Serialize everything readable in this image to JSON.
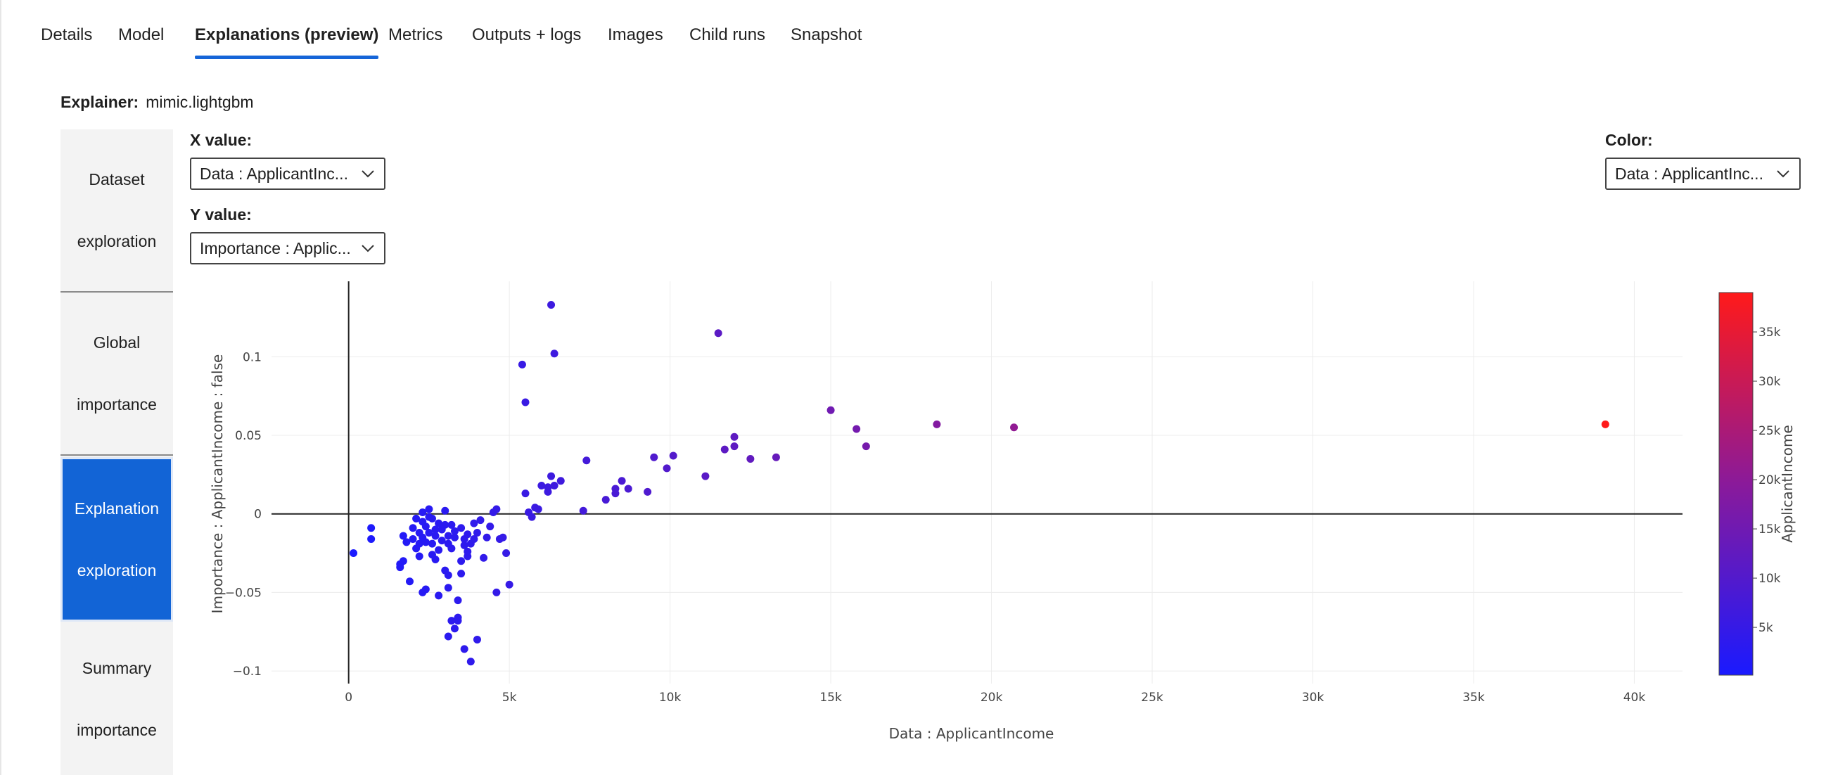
{
  "tabs": [
    {
      "label": "Details"
    },
    {
      "label": "Model"
    },
    {
      "label": "Explanations (preview)"
    },
    {
      "label": "Metrics"
    },
    {
      "label": "Outputs + logs"
    },
    {
      "label": "Images"
    },
    {
      "label": "Child runs"
    },
    {
      "label": "Snapshot"
    }
  ],
  "active_tab": "Explanations (preview)",
  "explainer": {
    "label": "Explainer:",
    "value": "mimic.lightgbm"
  },
  "sidenav": [
    {
      "line1": "Dataset",
      "line2": "exploration"
    },
    {
      "line1": "Global",
      "line2": "importance"
    },
    {
      "line1": "Explanation",
      "line2": "exploration"
    },
    {
      "line1": "Summary",
      "line2": "importance"
    }
  ],
  "active_nav": "Explanation exploration",
  "controls": {
    "x_label": "X value:",
    "x_value": "Data : ApplicantInc...",
    "y_label": "Y value:",
    "y_value": "Importance : Applic...",
    "color_label": "Color:",
    "color_value": "Data : ApplicantInc..."
  },
  "colors": {
    "accent": "#1565d8",
    "low": "#1a1aff",
    "high": "#ff1a1a"
  },
  "chart_data": {
    "type": "scatter",
    "xlabel": "Data : ApplicantIncome",
    "ylabel": "Importance : ApplicantIncome : false",
    "xlim": [
      -2400,
      41500
    ],
    "ylim": [
      -0.108,
      0.148
    ],
    "x_ticks": [
      "0",
      "5k",
      "10k",
      "15k",
      "20k",
      "25k",
      "30k",
      "35k",
      "40k"
    ],
    "x_tick_values": [
      0,
      5000,
      10000,
      15000,
      20000,
      25000,
      30000,
      35000,
      40000
    ],
    "y_ticks": [
      "−0.1",
      "−0.05",
      "0",
      "0.05",
      "0.1"
    ],
    "y_tick_values": [
      -0.1,
      -0.05,
      0,
      0.05,
      0.1
    ],
    "grid": true,
    "colorbar": {
      "title": "ApplicantIncome",
      "range": [
        150,
        39000
      ],
      "ticks": [
        "5k",
        "10k",
        "15k",
        "20k",
        "25k",
        "30k",
        "35k"
      ],
      "tick_values": [
        5000,
        10000,
        15000,
        20000,
        25000,
        30000,
        35000
      ]
    },
    "points": [
      [
        39100,
        0.057
      ],
      [
        20700,
        0.055
      ],
      [
        18300,
        0.057
      ],
      [
        16100,
        0.043
      ],
      [
        15800,
        0.054
      ],
      [
        15000,
        0.066
      ],
      [
        13300,
        0.036
      ],
      [
        12500,
        0.035
      ],
      [
        12000,
        0.049
      ],
      [
        12000,
        0.043
      ],
      [
        11700,
        0.041
      ],
      [
        11500,
        0.115
      ],
      [
        11100,
        0.024
      ],
      [
        10100,
        0.037
      ],
      [
        9900,
        0.029
      ],
      [
        9500,
        0.036
      ],
      [
        9300,
        0.014
      ],
      [
        8700,
        0.016
      ],
      [
        8500,
        0.021
      ],
      [
        8300,
        0.016
      ],
      [
        8300,
        0.013
      ],
      [
        8000,
        0.009
      ],
      [
        7400,
        0.034
      ],
      [
        7300,
        0.002
      ],
      [
        6400,
        0.102
      ],
      [
        6300,
        0.133
      ],
      [
        6600,
        0.021
      ],
      [
        6300,
        0.024
      ],
      [
        6400,
        0.018
      ],
      [
        6200,
        0.014
      ],
      [
        6200,
        0.017
      ],
      [
        6000,
        0.018
      ],
      [
        5800,
        0.004
      ],
      [
        5900,
        0.003
      ],
      [
        5700,
        -0.002
      ],
      [
        5600,
        0.001
      ],
      [
        5500,
        0.013
      ],
      [
        5500,
        0.071
      ],
      [
        5400,
        0.095
      ],
      [
        5000,
        -0.045
      ],
      [
        4900,
        -0.025
      ],
      [
        4800,
        -0.015
      ],
      [
        4700,
        -0.016
      ],
      [
        4600,
        -0.05
      ],
      [
        4600,
        0.003
      ],
      [
        4500,
        0.001
      ],
      [
        4400,
        -0.008
      ],
      [
        4300,
        -0.015
      ],
      [
        4200,
        -0.028
      ],
      [
        4100,
        -0.004
      ],
      [
        4000,
        -0.08
      ],
      [
        4000,
        -0.012
      ],
      [
        3900,
        -0.016
      ],
      [
        3900,
        -0.006
      ],
      [
        3800,
        -0.019
      ],
      [
        3800,
        -0.094
      ],
      [
        3700,
        -0.013
      ],
      [
        3700,
        -0.027
      ],
      [
        3700,
        -0.024
      ],
      [
        3600,
        -0.086
      ],
      [
        3600,
        -0.016
      ],
      [
        3600,
        -0.02
      ],
      [
        3500,
        -0.03
      ],
      [
        3500,
        -0.009
      ],
      [
        3500,
        -0.038
      ],
      [
        3400,
        -0.055
      ],
      [
        3400,
        -0.066
      ],
      [
        3400,
        -0.068
      ],
      [
        3300,
        -0.011
      ],
      [
        3300,
        -0.015
      ],
      [
        3300,
        -0.073
      ],
      [
        3200,
        -0.068
      ],
      [
        3200,
        -0.022
      ],
      [
        3200,
        -0.007
      ],
      [
        3100,
        -0.047
      ],
      [
        3100,
        -0.039
      ],
      [
        3100,
        -0.019
      ],
      [
        3100,
        -0.014
      ],
      [
        3100,
        -0.078
      ],
      [
        3000,
        -0.036
      ],
      [
        3000,
        -0.007
      ],
      [
        3000,
        0.002
      ],
      [
        2900,
        -0.01
      ],
      [
        2900,
        -0.017
      ],
      [
        2800,
        -0.006
      ],
      [
        2800,
        -0.052
      ],
      [
        2800,
        -0.023
      ],
      [
        2700,
        -0.029
      ],
      [
        2700,
        -0.01
      ],
      [
        2700,
        -0.014
      ],
      [
        2600,
        -0.003
      ],
      [
        2600,
        -0.019
      ],
      [
        2600,
        -0.026
      ],
      [
        2500,
        -0.002
      ],
      [
        2500,
        0.003
      ],
      [
        2500,
        -0.012
      ],
      [
        2400,
        -0.008
      ],
      [
        2400,
        -0.018
      ],
      [
        2400,
        -0.048
      ],
      [
        2300,
        -0.05
      ],
      [
        2300,
        -0.005
      ],
      [
        2300,
        0.001
      ],
      [
        2300,
        -0.015
      ],
      [
        2200,
        -0.012
      ],
      [
        2200,
        -0.019
      ],
      [
        2200,
        -0.027
      ],
      [
        2100,
        -0.003
      ],
      [
        2100,
        -0.022
      ],
      [
        2000,
        -0.016
      ],
      [
        2000,
        -0.009
      ],
      [
        1900,
        -0.043
      ],
      [
        1800,
        -0.018
      ],
      [
        1700,
        -0.03
      ],
      [
        1700,
        -0.014
      ],
      [
        1600,
        -0.034
      ],
      [
        1600,
        -0.032
      ],
      [
        700,
        -0.016
      ],
      [
        700,
        -0.009
      ],
      [
        150,
        -0.025
      ]
    ]
  }
}
